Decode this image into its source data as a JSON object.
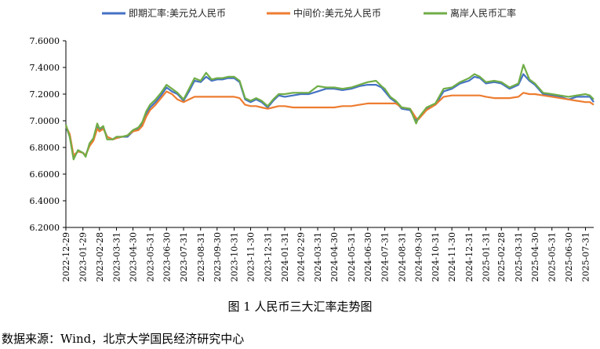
{
  "caption": "图 1 人民币三大汇率走势图",
  "source": "数据来源：Wind，北京大学国民经济研究中心",
  "chart_data": {
    "type": "line",
    "title": "",
    "xlabel": "",
    "ylabel": "",
    "ylim": [
      6.2,
      7.6
    ],
    "yticks": [
      "6.2000",
      "6.4000",
      "6.6000",
      "6.8000",
      "7.0000",
      "7.2000",
      "7.4000",
      "7.6000"
    ],
    "xticks": [
      "2022-12-29",
      "2023-01-29",
      "2023-02-28",
      "2023-03-31",
      "2023-04-30",
      "2023-05-31",
      "2023-06-30",
      "2023-07-31",
      "2023-08-31",
      "2023-09-30",
      "2023-10-31",
      "2023-11-30",
      "2023-12-31",
      "2024-01-31",
      "2024-02-29",
      "2024-03-31",
      "2024-04-30",
      "2024-05-31",
      "2024-06-30",
      "2024-07-31",
      "2024-08-31",
      "2024-09-30",
      "2024-10-31",
      "2024-11-30",
      "2024-12-31",
      "2025-01-31",
      "2025-02-28",
      "2025-03-31",
      "2025-04-30",
      "2025-05-31",
      "2025-06-30",
      "2025-07-31"
    ],
    "legend_position": "top",
    "grid": false,
    "series": [
      {
        "name": "即期汇率:美元兑人民币",
        "color": "#4472C4",
        "points": [
          [
            "2022-12-29",
            6.96
          ],
          [
            "2023-01-05",
            6.88
          ],
          [
            "2023-01-12",
            6.73
          ],
          [
            "2023-01-20",
            6.77
          ],
          [
            "2023-01-29",
            6.76
          ],
          [
            "2023-02-03",
            6.74
          ],
          [
            "2023-02-10",
            6.82
          ],
          [
            "2023-02-17",
            6.86
          ],
          [
            "2023-02-24",
            6.95
          ],
          [
            "2023-02-28",
            6.93
          ],
          [
            "2023-03-07",
            6.95
          ],
          [
            "2023-03-14",
            6.88
          ],
          [
            "2023-03-24",
            6.86
          ],
          [
            "2023-03-31",
            6.87
          ],
          [
            "2023-04-10",
            6.88
          ],
          [
            "2023-04-20",
            6.88
          ],
          [
            "2023-04-30",
            6.92
          ],
          [
            "2023-05-10",
            6.94
          ],
          [
            "2023-05-17",
            6.98
          ],
          [
            "2023-05-24",
            7.05
          ],
          [
            "2023-05-31",
            7.1
          ],
          [
            "2023-06-10",
            7.14
          ],
          [
            "2023-06-20",
            7.19
          ],
          [
            "2023-06-30",
            7.25
          ],
          [
            "2023-07-10",
            7.22
          ],
          [
            "2023-07-20",
            7.2
          ],
          [
            "2023-07-31",
            7.15
          ],
          [
            "2023-08-10",
            7.22
          ],
          [
            "2023-08-20",
            7.3
          ],
          [
            "2023-08-31",
            7.29
          ],
          [
            "2023-09-10",
            7.33
          ],
          [
            "2023-09-20",
            7.3
          ],
          [
            "2023-09-30",
            7.31
          ],
          [
            "2023-10-10",
            7.31
          ],
          [
            "2023-10-20",
            7.32
          ],
          [
            "2023-10-31",
            7.32
          ],
          [
            "2023-11-10",
            7.29
          ],
          [
            "2023-11-20",
            7.16
          ],
          [
            "2023-11-30",
            7.14
          ],
          [
            "2023-12-10",
            7.16
          ],
          [
            "2023-12-20",
            7.14
          ],
          [
            "2023-12-31",
            7.1
          ],
          [
            "2024-01-10",
            7.15
          ],
          [
            "2024-01-20",
            7.19
          ],
          [
            "2024-01-31",
            7.18
          ],
          [
            "2024-02-15",
            7.19
          ],
          [
            "2024-02-29",
            7.2
          ],
          [
            "2024-03-15",
            7.2
          ],
          [
            "2024-03-31",
            7.22
          ],
          [
            "2024-04-15",
            7.24
          ],
          [
            "2024-04-30",
            7.24
          ],
          [
            "2024-05-15",
            7.23
          ],
          [
            "2024-05-31",
            7.24
          ],
          [
            "2024-06-15",
            7.26
          ],
          [
            "2024-06-30",
            7.27
          ],
          [
            "2024-07-15",
            7.27
          ],
          [
            "2024-07-25",
            7.25
          ],
          [
            "2024-07-31",
            7.22
          ],
          [
            "2024-08-10",
            7.17
          ],
          [
            "2024-08-20",
            7.14
          ],
          [
            "2024-08-31",
            7.09
          ],
          [
            "2024-09-15",
            7.08
          ],
          [
            "2024-09-26",
            7.0
          ],
          [
            "2024-09-30",
            7.02
          ],
          [
            "2024-10-15",
            7.09
          ],
          [
            "2024-10-31",
            7.12
          ],
          [
            "2024-11-15",
            7.22
          ],
          [
            "2024-11-30",
            7.24
          ],
          [
            "2024-12-15",
            7.28
          ],
          [
            "2024-12-31",
            7.3
          ],
          [
            "2025-01-10",
            7.33
          ],
          [
            "2025-01-20",
            7.32
          ],
          [
            "2025-01-31",
            7.28
          ],
          [
            "2025-02-15",
            7.29
          ],
          [
            "2025-02-28",
            7.28
          ],
          [
            "2025-03-15",
            7.24
          ],
          [
            "2025-03-31",
            7.27
          ],
          [
            "2025-04-09",
            7.35
          ],
          [
            "2025-04-20",
            7.3
          ],
          [
            "2025-04-30",
            7.27
          ],
          [
            "2025-05-15",
            7.2
          ],
          [
            "2025-05-31",
            7.19
          ],
          [
            "2025-06-15",
            7.18
          ],
          [
            "2025-06-30",
            7.16
          ],
          [
            "2025-07-15",
            7.18
          ],
          [
            "2025-07-31",
            7.18
          ],
          [
            "2025-08-08",
            7.18
          ],
          [
            "2025-08-15",
            7.14
          ]
        ]
      },
      {
        "name": "中间价:美元兑人民币",
        "color": "#ED7D31",
        "points": [
          [
            "2022-12-29",
            6.96
          ],
          [
            "2023-01-05",
            6.9
          ],
          [
            "2023-01-12",
            6.74
          ],
          [
            "2023-01-20",
            6.77
          ],
          [
            "2023-01-29",
            6.76
          ],
          [
            "2023-02-03",
            6.74
          ],
          [
            "2023-02-10",
            6.81
          ],
          [
            "2023-02-17",
            6.85
          ],
          [
            "2023-02-24",
            6.94
          ],
          [
            "2023-02-28",
            6.92
          ],
          [
            "2023-03-07",
            6.94
          ],
          [
            "2023-03-14",
            6.88
          ],
          [
            "2023-03-24",
            6.86
          ],
          [
            "2023-03-31",
            6.87
          ],
          [
            "2023-04-10",
            6.88
          ],
          [
            "2023-04-20",
            6.89
          ],
          [
            "2023-04-30",
            6.92
          ],
          [
            "2023-05-10",
            6.93
          ],
          [
            "2023-05-17",
            6.96
          ],
          [
            "2023-05-24",
            7.03
          ],
          [
            "2023-05-31",
            7.08
          ],
          [
            "2023-06-10",
            7.12
          ],
          [
            "2023-06-20",
            7.17
          ],
          [
            "2023-06-30",
            7.22
          ],
          [
            "2023-07-10",
            7.2
          ],
          [
            "2023-07-20",
            7.16
          ],
          [
            "2023-07-31",
            7.14
          ],
          [
            "2023-08-10",
            7.16
          ],
          [
            "2023-08-20",
            7.18
          ],
          [
            "2023-08-31",
            7.18
          ],
          [
            "2023-09-10",
            7.18
          ],
          [
            "2023-09-20",
            7.18
          ],
          [
            "2023-09-30",
            7.18
          ],
          [
            "2023-10-10",
            7.18
          ],
          [
            "2023-10-20",
            7.18
          ],
          [
            "2023-10-31",
            7.18
          ],
          [
            "2023-11-10",
            7.17
          ],
          [
            "2023-11-20",
            7.12
          ],
          [
            "2023-11-30",
            7.11
          ],
          [
            "2023-12-10",
            7.11
          ],
          [
            "2023-12-20",
            7.1
          ],
          [
            "2023-12-31",
            7.09
          ],
          [
            "2024-01-10",
            7.1
          ],
          [
            "2024-01-20",
            7.11
          ],
          [
            "2024-01-31",
            7.11
          ],
          [
            "2024-02-15",
            7.1
          ],
          [
            "2024-02-29",
            7.1
          ],
          [
            "2024-03-15",
            7.1
          ],
          [
            "2024-03-31",
            7.1
          ],
          [
            "2024-04-15",
            7.1
          ],
          [
            "2024-04-30",
            7.1
          ],
          [
            "2024-05-15",
            7.11
          ],
          [
            "2024-05-31",
            7.11
          ],
          [
            "2024-06-15",
            7.12
          ],
          [
            "2024-06-30",
            7.13
          ],
          [
            "2024-07-15",
            7.13
          ],
          [
            "2024-07-25",
            7.13
          ],
          [
            "2024-07-31",
            7.13
          ],
          [
            "2024-08-10",
            7.13
          ],
          [
            "2024-08-20",
            7.13
          ],
          [
            "2024-08-31",
            7.1
          ],
          [
            "2024-09-15",
            7.09
          ],
          [
            "2024-09-26",
            7.02
          ],
          [
            "2024-09-30",
            7.01
          ],
          [
            "2024-10-15",
            7.08
          ],
          [
            "2024-10-31",
            7.12
          ],
          [
            "2024-11-15",
            7.18
          ],
          [
            "2024-11-30",
            7.19
          ],
          [
            "2024-12-15",
            7.19
          ],
          [
            "2024-12-31",
            7.19
          ],
          [
            "2025-01-10",
            7.19
          ],
          [
            "2025-01-20",
            7.19
          ],
          [
            "2025-01-31",
            7.18
          ],
          [
            "2025-02-15",
            7.17
          ],
          [
            "2025-02-28",
            7.17
          ],
          [
            "2025-03-15",
            7.17
          ],
          [
            "2025-03-31",
            7.18
          ],
          [
            "2025-04-09",
            7.21
          ],
          [
            "2025-04-20",
            7.2
          ],
          [
            "2025-04-30",
            7.2
          ],
          [
            "2025-05-15",
            7.19
          ],
          [
            "2025-05-31",
            7.18
          ],
          [
            "2025-06-15",
            7.17
          ],
          [
            "2025-06-30",
            7.16
          ],
          [
            "2025-07-15",
            7.15
          ],
          [
            "2025-07-31",
            7.14
          ],
          [
            "2025-08-08",
            7.14
          ],
          [
            "2025-08-15",
            7.12
          ]
        ]
      },
      {
        "name": "离岸人民币汇率",
        "color": "#70AD47",
        "points": [
          [
            "2022-12-29",
            6.97
          ],
          [
            "2023-01-05",
            6.88
          ],
          [
            "2023-01-12",
            6.71
          ],
          [
            "2023-01-20",
            6.78
          ],
          [
            "2023-01-29",
            6.76
          ],
          [
            "2023-02-03",
            6.73
          ],
          [
            "2023-02-10",
            6.83
          ],
          [
            "2023-02-17",
            6.87
          ],
          [
            "2023-02-24",
            6.98
          ],
          [
            "2023-02-28",
            6.94
          ],
          [
            "2023-03-07",
            6.96
          ],
          [
            "2023-03-14",
            6.86
          ],
          [
            "2023-03-24",
            6.86
          ],
          [
            "2023-03-31",
            6.88
          ],
          [
            "2023-04-10",
            6.88
          ],
          [
            "2023-04-20",
            6.89
          ],
          [
            "2023-04-30",
            6.93
          ],
          [
            "2023-05-10",
            6.95
          ],
          [
            "2023-05-17",
            6.99
          ],
          [
            "2023-05-24",
            7.07
          ],
          [
            "2023-05-31",
            7.12
          ],
          [
            "2023-06-10",
            7.16
          ],
          [
            "2023-06-20",
            7.21
          ],
          [
            "2023-06-30",
            7.27
          ],
          [
            "2023-07-10",
            7.24
          ],
          [
            "2023-07-20",
            7.21
          ],
          [
            "2023-07-31",
            7.16
          ],
          [
            "2023-08-10",
            7.24
          ],
          [
            "2023-08-20",
            7.32
          ],
          [
            "2023-08-31",
            7.3
          ],
          [
            "2023-09-10",
            7.36
          ],
          [
            "2023-09-20",
            7.31
          ],
          [
            "2023-09-30",
            7.32
          ],
          [
            "2023-10-10",
            7.32
          ],
          [
            "2023-10-20",
            7.33
          ],
          [
            "2023-10-31",
            7.33
          ],
          [
            "2023-11-10",
            7.3
          ],
          [
            "2023-11-20",
            7.17
          ],
          [
            "2023-11-30",
            7.15
          ],
          [
            "2023-12-10",
            7.17
          ],
          [
            "2023-12-20",
            7.15
          ],
          [
            "2023-12-31",
            7.11
          ],
          [
            "2024-01-10",
            7.16
          ],
          [
            "2024-01-20",
            7.2
          ],
          [
            "2024-01-31",
            7.2
          ],
          [
            "2024-02-15",
            7.21
          ],
          [
            "2024-02-29",
            7.21
          ],
          [
            "2024-03-15",
            7.21
          ],
          [
            "2024-03-31",
            7.26
          ],
          [
            "2024-04-15",
            7.25
          ],
          [
            "2024-04-30",
            7.25
          ],
          [
            "2024-05-15",
            7.24
          ],
          [
            "2024-05-31",
            7.25
          ],
          [
            "2024-06-15",
            7.27
          ],
          [
            "2024-06-30",
            7.29
          ],
          [
            "2024-07-15",
            7.3
          ],
          [
            "2024-07-25",
            7.26
          ],
          [
            "2024-07-31",
            7.24
          ],
          [
            "2024-08-10",
            7.18
          ],
          [
            "2024-08-20",
            7.15
          ],
          [
            "2024-08-31",
            7.1
          ],
          [
            "2024-09-15",
            7.09
          ],
          [
            "2024-09-26",
            6.98
          ],
          [
            "2024-09-30",
            7.02
          ],
          [
            "2024-10-15",
            7.1
          ],
          [
            "2024-10-31",
            7.13
          ],
          [
            "2024-11-15",
            7.24
          ],
          [
            "2024-11-30",
            7.25
          ],
          [
            "2024-12-15",
            7.29
          ],
          [
            "2024-12-31",
            7.32
          ],
          [
            "2025-01-10",
            7.35
          ],
          [
            "2025-01-20",
            7.33
          ],
          [
            "2025-01-31",
            7.29
          ],
          [
            "2025-02-15",
            7.3
          ],
          [
            "2025-02-28",
            7.29
          ],
          [
            "2025-03-15",
            7.25
          ],
          [
            "2025-03-31",
            7.28
          ],
          [
            "2025-04-09",
            7.42
          ],
          [
            "2025-04-20",
            7.31
          ],
          [
            "2025-04-30",
            7.28
          ],
          [
            "2025-05-15",
            7.21
          ],
          [
            "2025-05-31",
            7.2
          ],
          [
            "2025-06-15",
            7.19
          ],
          [
            "2025-06-30",
            7.18
          ],
          [
            "2025-07-15",
            7.19
          ],
          [
            "2025-07-31",
            7.2
          ],
          [
            "2025-08-08",
            7.19
          ],
          [
            "2025-08-15",
            7.16
          ]
        ]
      }
    ]
  }
}
